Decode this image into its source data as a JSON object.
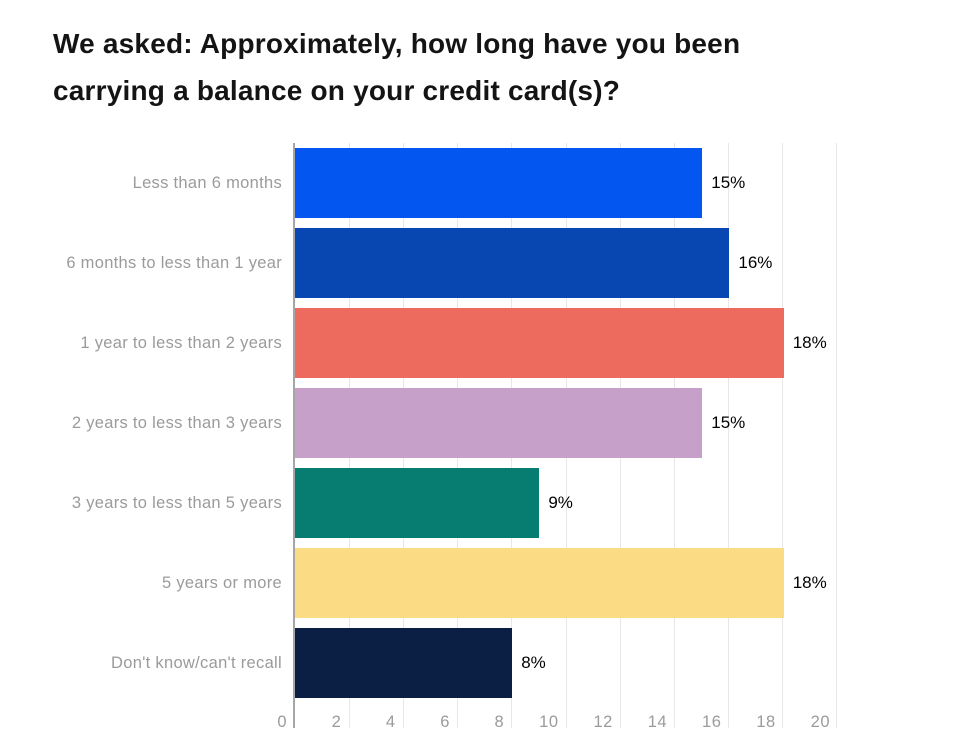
{
  "title_lines": [
    "We asked: Approximately, how long have you been",
    "carrying a balance on your credit card(s)?"
  ],
  "chart_data": {
    "type": "bar",
    "orientation": "horizontal",
    "title": "We asked: Approximately, how long have you been carrying a balance on your credit card(s)?",
    "categories": [
      "Less than 6 months",
      "6 months to less than 1 year",
      "1 year to less than 2 years",
      "2 years to less than 3 years",
      "3 years to less than 5 years",
      "5 years or more",
      "Don't know/can't recall"
    ],
    "values": [
      15,
      16,
      18,
      15,
      9,
      18,
      8
    ],
    "value_labels": [
      "15%",
      "16%",
      "18%",
      "15%",
      "9%",
      "18%",
      "8%"
    ],
    "bar_colors": [
      "#0456f0",
      "#0846b1",
      "#ed6a5e",
      "#c7a0ca",
      "#077d72",
      "#fbdc85",
      "#0b1f44"
    ],
    "xlabel": "",
    "ylabel": "",
    "xlim": [
      0,
      20
    ],
    "xticks": [
      0,
      2,
      4,
      6,
      8,
      10,
      12,
      14,
      16,
      18,
      20
    ],
    "grid": "vertical",
    "legend": "none",
    "colors": {
      "gridline": "#e7e7e7",
      "axis_line": "#a6a6a6",
      "category_label": "#9b9b9b",
      "tick_label": "#9b9b9b",
      "value_label": "#000000",
      "title": "#141414",
      "background": "#ffffff"
    }
  }
}
